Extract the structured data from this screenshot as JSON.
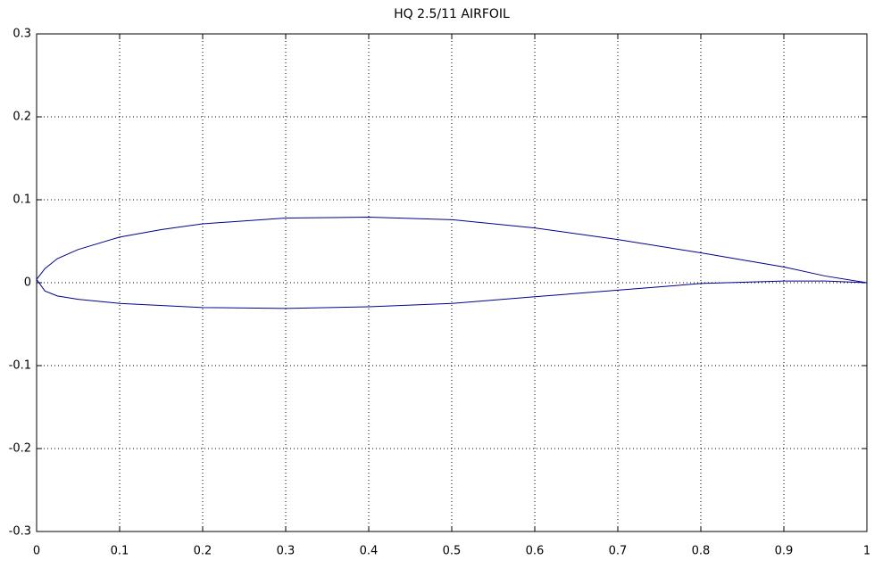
{
  "chart_data": {
    "type": "line",
    "title": "HQ 2.5/11 AIRFOIL",
    "x": [
      1,
      0.95,
      0.9,
      0.8,
      0.7,
      0.6,
      0.5,
      0.4,
      0.3,
      0.2,
      0.15,
      0.1,
      0.05,
      0.025,
      0.01,
      0,
      0.01,
      0.025,
      0.05,
      0.1,
      0.2,
      0.3,
      0.4,
      0.5,
      0.6,
      0.7,
      0.8,
      0.9,
      0.95,
      1
    ],
    "series": [
      {
        "color": "#00008b",
        "values": [
          0,
          0.008,
          0.019,
          0.036,
          0.052,
          0.066,
          0.076,
          0.079,
          0.078,
          0.071,
          0.064,
          0.055,
          0.04,
          0.029,
          0.017,
          0.004,
          -0.01,
          -0.016,
          -0.02,
          -0.025,
          -0.03,
          -0.031,
          -0.029,
          -0.025,
          -0.017,
          -0.009,
          -0.001,
          0.002,
          0.002,
          0
        ]
      }
    ],
    "xlim": [
      0,
      1
    ],
    "ylim": [
      -0.3,
      0.3
    ],
    "xticks": [
      0,
      0.1,
      0.2,
      0.3,
      0.4,
      0.5,
      0.6,
      0.7,
      0.8,
      0.9,
      1
    ],
    "yticks": [
      -0.3,
      -0.2,
      -0.1,
      0,
      0.1,
      0.2,
      0.3
    ],
    "grid": true
  }
}
